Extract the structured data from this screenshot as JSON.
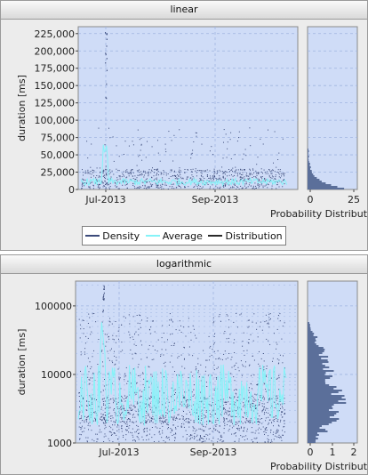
{
  "panels": [
    {
      "title": "linear"
    },
    {
      "title": "logarithmic"
    }
  ],
  "legend": [
    {
      "label": "Density",
      "color": "#3b4a7a"
    },
    {
      "label": "Average",
      "color": "#7fffff"
    },
    {
      "label": "Distribution",
      "color": "#2a2a2a"
    }
  ],
  "colors": {
    "plot_bg": "#cfdcf7",
    "grid": "#9fb4e0",
    "density": "#3b4a7a",
    "average": "#86f3f8",
    "distribution": "#5b6f9a"
  },
  "chart_data": [
    {
      "type": "scatter",
      "title": "linear",
      "ylabel": "duration [ms]",
      "xlabel": "",
      "x_ticks": [
        "Jul-2013",
        "Sep-2013"
      ],
      "y_ticks": [
        "0",
        "25,000",
        "50,000",
        "75,000",
        "100,000",
        "125,000",
        "150,000",
        "175,000",
        "200,000",
        "225,000"
      ],
      "ylim": [
        0,
        235000
      ],
      "side": {
        "xlabel": "Probability Distribution",
        "x_ticks": [
          "0",
          "25"
        ]
      }
    },
    {
      "type": "scatter",
      "title": "logarithmic",
      "ylabel": "duration [ms]",
      "xlabel": "",
      "x_ticks": [
        "Jul-2013",
        "Sep-2013"
      ],
      "y_ticks": [
        "1000",
        "10000",
        "100000"
      ],
      "ylim": [
        1000,
        230000
      ],
      "yscale": "log",
      "side": {
        "xlabel": "Probability Distribution",
        "x_ticks": [
          "0",
          "1",
          "2"
        ]
      }
    }
  ]
}
